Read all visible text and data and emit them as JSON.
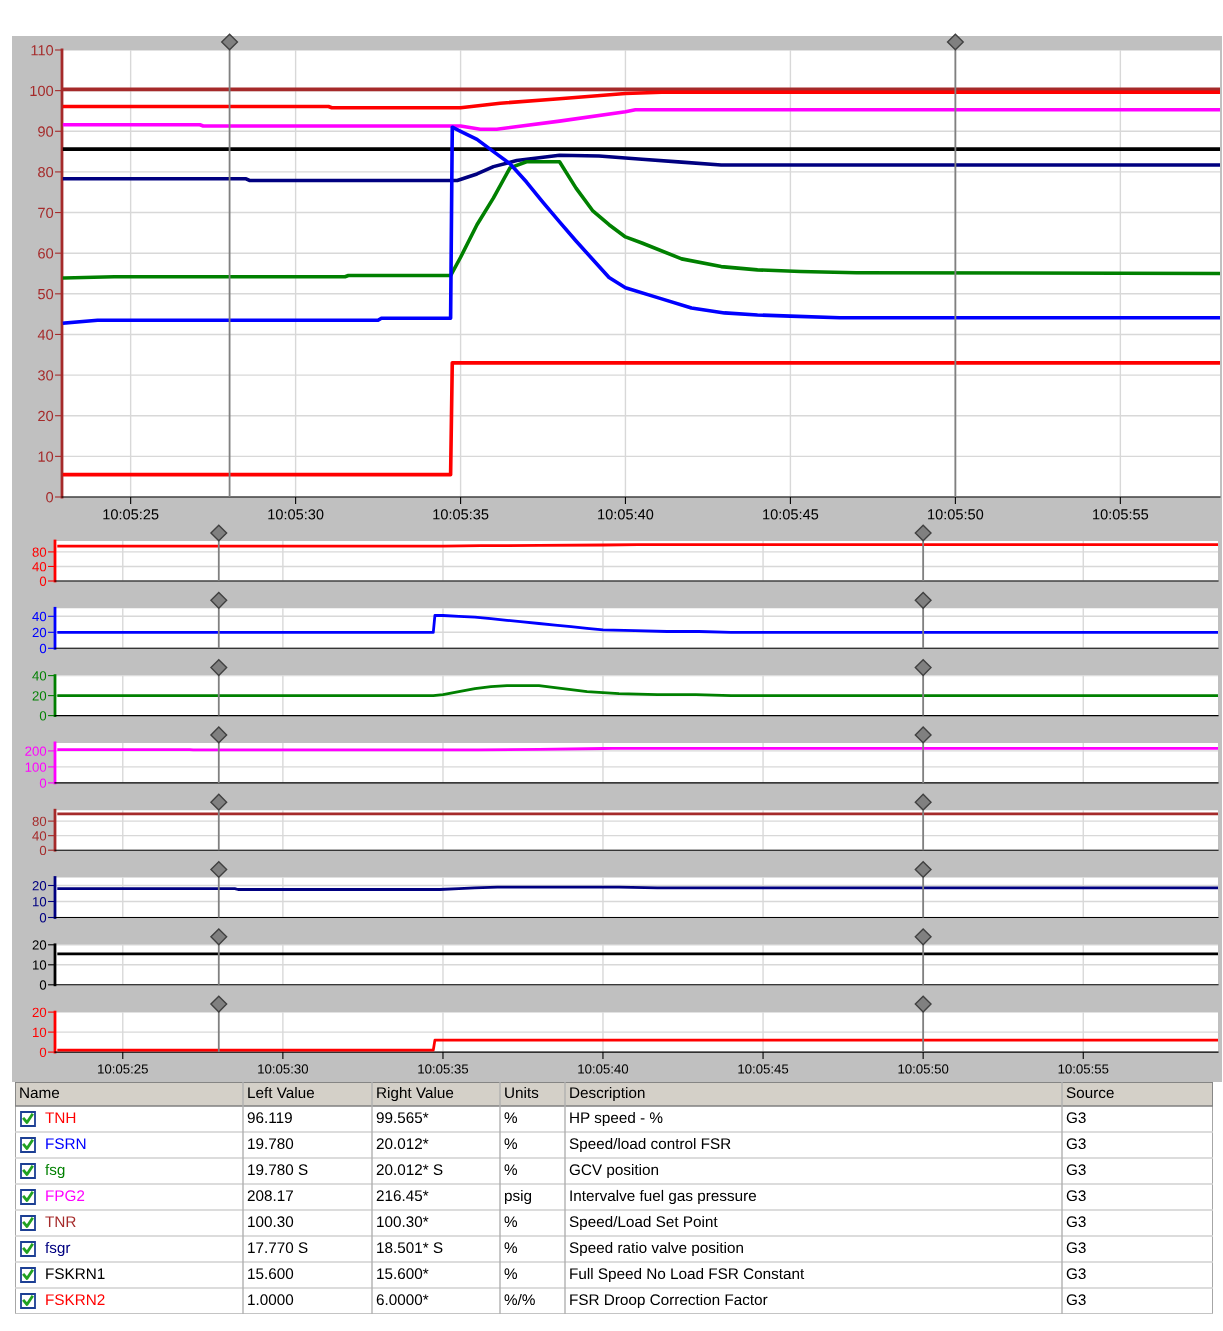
{
  "chart_data": [
    {
      "type": "line",
      "xlim": [
        10.0897,
        10.09945
      ],
      "ylim": [
        0,
        110
      ],
      "xticks": [
        {
          "value": 10.090278,
          "label": "10:05:25"
        },
        {
          "value": 10.091667,
          "label": "10:05:30"
        },
        {
          "value": 10.093056,
          "label": "10:05:35"
        },
        {
          "value": 10.094444,
          "label": "10:05:40"
        },
        {
          "value": 10.095833,
          "label": "10:05:45"
        },
        {
          "value": 10.097222,
          "label": "10:05:50"
        },
        {
          "value": 10.098611,
          "label": "10:05:55"
        }
      ],
      "yticks": [
        0,
        10,
        20,
        30,
        40,
        50,
        60,
        70,
        80,
        90,
        100,
        110
      ],
      "grid": true,
      "ref_lines": [
        {
          "axis": "x",
          "value": 10.091111,
          "color": "#808080"
        },
        {
          "axis": "x",
          "value": 10.097222,
          "color": "#808080"
        }
      ],
      "series": [
        {
          "color": "#a52a2a",
          "x": [
            10.089722,
            10.099444
          ],
          "values": [
            100.3,
            100.3
          ]
        },
        {
          "color": "#ff0000",
          "x": [
            10.089722,
            10.091944,
            10.091972,
            10.093056,
            10.093389,
            10.093889,
            10.094444,
            10.09475,
            10.099444
          ],
          "values": [
            96.1,
            96.1,
            95.8,
            95.8,
            96.9,
            98.0,
            99.3,
            99.6,
            99.6
          ]
        },
        {
          "color": "#ff00ff",
          "x": [
            10.089722,
            10.090861,
            10.090889,
            10.093056,
            10.093222,
            10.093361,
            10.093889,
            10.094444,
            10.094528,
            10.099444
          ],
          "values": [
            91.6,
            91.6,
            91.3,
            91.3,
            90.5,
            90.5,
            92.5,
            94.8,
            95.3,
            95.3
          ]
        },
        {
          "color": "#000000",
          "x": [
            10.089722,
            10.099444
          ],
          "values": [
            85.6,
            85.6
          ]
        },
        {
          "color": "#000080",
          "x": [
            10.089722,
            10.09125,
            10.091278,
            10.093028,
            10.093194,
            10.093333,
            10.093528,
            10.093889,
            10.094222,
            10.094583,
            10.094917,
            10.09525,
            10.099444
          ],
          "values": [
            78.3,
            78.3,
            77.9,
            77.9,
            79.5,
            81.3,
            82.8,
            84.1,
            83.9,
            83.1,
            82.4,
            81.7,
            81.7
          ]
        },
        {
          "color": "#008000",
          "x": [
            10.089722,
            10.090139,
            10.092083,
            10.092111,
            10.092972,
            10.093056,
            10.093194,
            10.093333,
            10.093472,
            10.093611,
            10.093889,
            10.094028,
            10.094167,
            10.094306,
            10.094444,
            10.094583,
            10.094917,
            10.09525,
            10.095556,
            10.095917,
            10.096389,
            10.099444
          ],
          "values": [
            53.9,
            54.2,
            54.2,
            54.5,
            54.5,
            59,
            67,
            73.6,
            81,
            82.5,
            82.5,
            76,
            70.5,
            67,
            64,
            62.5,
            58.6,
            56.7,
            55.9,
            55.5,
            55.2,
            55.0
          ]
        },
        {
          "color": "#0000ff",
          "x": [
            10.089722,
            10.09,
            10.092361,
            10.092389,
            10.092972,
            10.092986,
            10.093056,
            10.093194,
            10.093333,
            10.093472,
            10.093611,
            10.09375,
            10.093889,
            10.094028,
            10.094167,
            10.094306,
            10.094444,
            10.094722,
            10.095,
            10.095278,
            10.095556,
            10.095833,
            10.09625,
            10.099444
          ],
          "values": [
            42.8,
            43.5,
            43.5,
            44,
            44,
            91,
            90,
            88,
            85,
            82,
            77.5,
            72.5,
            67.7,
            63,
            58.5,
            54,
            51.5,
            49,
            46.5,
            45.3,
            44.8,
            44.5,
            44.1,
            44.1
          ]
        },
        {
          "color": "#ff0000",
          "x": [
            10.089722,
            10.092972,
            10.092986,
            10.099444
          ],
          "values": [
            5.5,
            5.5,
            33,
            33
          ]
        }
      ]
    },
    {
      "type": "line",
      "xlim": [
        10.08969,
        10.09978
      ],
      "ylim": [
        0,
        110
      ],
      "yticks": [
        0,
        40,
        80
      ],
      "grid": true,
      "tick_labels": "y",
      "xticks": [
        {
          "value": 10.090278,
          "label": null
        },
        {
          "value": 10.091667,
          "label": null
        },
        {
          "value": 10.093056,
          "label": null
        },
        {
          "value": 10.094444,
          "label": null
        },
        {
          "value": 10.095833,
          "label": null
        },
        {
          "value": 10.097222,
          "label": null
        },
        {
          "value": 10.098611,
          "label": null
        }
      ],
      "ref_lines": [
        {
          "axis": "x",
          "value": 10.091111,
          "color": "#808080"
        },
        {
          "axis": "x",
          "value": 10.097222,
          "color": "#808080"
        }
      ],
      "series": [
        {
          "color": "#ff0000",
          "x": [
            10.089722,
            10.093056,
            10.093389,
            10.093889,
            10.094444,
            10.09475,
            10.099778
          ],
          "values": [
            96,
            96,
            97,
            98,
            99,
            100,
            100
          ]
        }
      ]
    },
    {
      "type": "line",
      "xlim": [
        10.08969,
        10.09978
      ],
      "ylim": [
        0,
        50
      ],
      "yticks": [
        0,
        20,
        40
      ],
      "grid": true,
      "tick_labels": "y",
      "xticks": [
        {
          "value": 10.090278,
          "label": null
        },
        {
          "value": 10.091667,
          "label": null
        },
        {
          "value": 10.093056,
          "label": null
        },
        {
          "value": 10.094444,
          "label": null
        },
        {
          "value": 10.095833,
          "label": null
        },
        {
          "value": 10.097222,
          "label": null
        },
        {
          "value": 10.098611,
          "label": null
        }
      ],
      "ref_lines": [
        {
          "axis": "x",
          "value": 10.091111,
          "color": "#808080"
        },
        {
          "axis": "x",
          "value": 10.097222,
          "color": "#808080"
        }
      ],
      "series": [
        {
          "color": "#0000ff",
          "x": [
            10.089722,
            10.09,
            10.092361,
            10.092389,
            10.092972,
            10.092986,
            10.093056,
            10.093194,
            10.093333,
            10.093472,
            10.093611,
            10.09375,
            10.093889,
            10.094028,
            10.094167,
            10.094306,
            10.094444,
            10.094722,
            10.095,
            10.095278,
            10.095556,
            10.095833,
            10.09625,
            10.099778
          ],
          "values": [
            20,
            20,
            20,
            20,
            20,
            41,
            41,
            40,
            39,
            37,
            35,
            33,
            31,
            29,
            27,
            25,
            23,
            22,
            21,
            21,
            20,
            20,
            20,
            20
          ]
        }
      ]
    },
    {
      "type": "line",
      "xlim": [
        10.08969,
        10.09978
      ],
      "ylim": [
        0,
        40
      ],
      "yticks": [
        0,
        20,
        40
      ],
      "grid": true,
      "tick_labels": "y",
      "xticks": [
        {
          "value": 10.090278,
          "label": null
        },
        {
          "value": 10.091667,
          "label": null
        },
        {
          "value": 10.093056,
          "label": null
        },
        {
          "value": 10.094444,
          "label": null
        },
        {
          "value": 10.095833,
          "label": null
        },
        {
          "value": 10.097222,
          "label": null
        },
        {
          "value": 10.098611,
          "label": null
        }
      ],
      "ref_lines": [
        {
          "axis": "x",
          "value": 10.091111,
          "color": "#808080"
        },
        {
          "axis": "x",
          "value": 10.097222,
          "color": "#808080"
        }
      ],
      "series": [
        {
          "color": "#008000",
          "x": [
            10.089722,
            10.090139,
            10.092083,
            10.092111,
            10.092972,
            10.093056,
            10.093194,
            10.093333,
            10.093472,
            10.093611,
            10.093889,
            10.094028,
            10.094167,
            10.094306,
            10.094444,
            10.094583,
            10.094917,
            10.09525,
            10.095556,
            10.095917,
            10.096389,
            10.099778
          ],
          "values": [
            20,
            20,
            20,
            20,
            20,
            21,
            24,
            27,
            29,
            30,
            30,
            28,
            26,
            24,
            23,
            22,
            21,
            21,
            20,
            20,
            20,
            20
          ]
        }
      ]
    },
    {
      "type": "line",
      "xlim": [
        10.08969,
        10.09978
      ],
      "ylim": [
        0,
        250
      ],
      "yticks": [
        0,
        100,
        200
      ],
      "grid": true,
      "tick_labels": "y",
      "xticks": [
        {
          "value": 10.090278,
          "label": null
        },
        {
          "value": 10.091667,
          "label": null
        },
        {
          "value": 10.093056,
          "label": null
        },
        {
          "value": 10.094444,
          "label": null
        },
        {
          "value": 10.095833,
          "label": null
        },
        {
          "value": 10.097222,
          "label": null
        },
        {
          "value": 10.098611,
          "label": null
        }
      ],
      "ref_lines": [
        {
          "axis": "x",
          "value": 10.091111,
          "color": "#808080"
        },
        {
          "axis": "x",
          "value": 10.097222,
          "color": "#808080"
        }
      ],
      "series": [
        {
          "color": "#ff00ff",
          "x": [
            10.089722,
            10.090861,
            10.090889,
            10.093056,
            10.093222,
            10.093361,
            10.093889,
            10.094444,
            10.094528,
            10.099778
          ],
          "values": [
            208,
            208,
            207,
            207,
            206,
            206,
            210,
            215,
            216,
            216
          ]
        }
      ]
    },
    {
      "type": "line",
      "xlim": [
        10.08969,
        10.09978
      ],
      "ylim": [
        0,
        110
      ],
      "yticks": [
        0,
        40,
        80
      ],
      "grid": true,
      "tick_labels": "y",
      "xticks": [
        {
          "value": 10.090278,
          "label": null
        },
        {
          "value": 10.091667,
          "label": null
        },
        {
          "value": 10.093056,
          "label": null
        },
        {
          "value": 10.094444,
          "label": null
        },
        {
          "value": 10.095833,
          "label": null
        },
        {
          "value": 10.097222,
          "label": null
        },
        {
          "value": 10.098611,
          "label": null
        }
      ],
      "ref_lines": [
        {
          "axis": "x",
          "value": 10.091111,
          "color": "#808080"
        },
        {
          "axis": "x",
          "value": 10.097222,
          "color": "#808080"
        }
      ],
      "series": [
        {
          "color": "#a52a2a",
          "x": [
            10.089722,
            10.099778
          ],
          "values": [
            100,
            100
          ]
        }
      ]
    },
    {
      "type": "line",
      "xlim": [
        10.08969,
        10.09978
      ],
      "ylim": [
        0,
        25
      ],
      "yticks": [
        0,
        10,
        20
      ],
      "grid": true,
      "tick_labels": "y",
      "xticks": [
        {
          "value": 10.090278,
          "label": null
        },
        {
          "value": 10.091667,
          "label": null
        },
        {
          "value": 10.093056,
          "label": null
        },
        {
          "value": 10.094444,
          "label": null
        },
        {
          "value": 10.095833,
          "label": null
        },
        {
          "value": 10.097222,
          "label": null
        },
        {
          "value": 10.098611,
          "label": null
        }
      ],
      "ref_lines": [
        {
          "axis": "x",
          "value": 10.091111,
          "color": "#808080"
        },
        {
          "axis": "x",
          "value": 10.097222,
          "color": "#808080"
        }
      ],
      "series": [
        {
          "color": "#000080",
          "x": [
            10.089722,
            10.09125,
            10.091278,
            10.093028,
            10.093194,
            10.093333,
            10.093528,
            10.093889,
            10.094222,
            10.094583,
            10.094917,
            10.09525,
            10.099778
          ],
          "values": [
            18,
            18,
            17.5,
            17.5,
            18,
            18.5,
            19,
            19,
            19,
            19,
            18.5,
            18.5,
            18.5
          ]
        }
      ]
    },
    {
      "type": "line",
      "xlim": [
        10.08969,
        10.09978
      ],
      "ylim": [
        0,
        20
      ],
      "yticks": [
        0,
        10,
        20
      ],
      "grid": true,
      "tick_labels": "y",
      "xticks": [
        {
          "value": 10.090278,
          "label": null
        },
        {
          "value": 10.091667,
          "label": null
        },
        {
          "value": 10.093056,
          "label": null
        },
        {
          "value": 10.094444,
          "label": null
        },
        {
          "value": 10.095833,
          "label": null
        },
        {
          "value": 10.097222,
          "label": null
        },
        {
          "value": 10.098611,
          "label": null
        }
      ],
      "ref_lines": [
        {
          "axis": "x",
          "value": 10.091111,
          "color": "#808080"
        },
        {
          "axis": "x",
          "value": 10.097222,
          "color": "#808080"
        }
      ],
      "series": [
        {
          "color": "#000000",
          "x": [
            10.089722,
            10.099778
          ],
          "values": [
            15.5,
            15.5
          ]
        }
      ]
    },
    {
      "type": "line",
      "xlim": [
        10.08969,
        10.09978
      ],
      "ylim": [
        0,
        20
      ],
      "yticks": [
        0,
        10,
        20
      ],
      "grid": true,
      "xticks": [
        {
          "value": 10.090278,
          "label": "10:05:25"
        },
        {
          "value": 10.091667,
          "label": "10:05:30"
        },
        {
          "value": 10.093056,
          "label": "10:05:35"
        },
        {
          "value": 10.094444,
          "label": "10:05:40"
        },
        {
          "value": 10.095833,
          "label": "10:05:45"
        },
        {
          "value": 10.097222,
          "label": "10:05:50"
        },
        {
          "value": 10.098611,
          "label": "10:05:55"
        }
      ],
      "ref_lines": [
        {
          "axis": "x",
          "value": 10.091111,
          "color": "#808080"
        },
        {
          "axis": "x",
          "value": 10.097222,
          "color": "#808080"
        }
      ],
      "series": [
        {
          "color": "#ff0000",
          "x": [
            10.089722,
            10.092972,
            10.092986,
            10.099778
          ],
          "values": [
            1.0,
            1.0,
            6.0,
            6.0
          ]
        }
      ]
    },
    {
      "type": "other",
      "annotations": [
        "Name",
        "Left Value",
        "Right Value",
        "Units",
        "Description",
        "Source",
        "TNH",
        "96.119",
        "99.565*",
        "%",
        "HP speed - %",
        "G3",
        "FSRN",
        "19.780",
        "20.012*",
        "%",
        "Speed/load control FSR",
        "G3",
        "fsg",
        "19.780 S",
        "20.012* S",
        "%",
        "GCV position",
        "G3",
        "FPG2",
        "208.17",
        "216.45*",
        "psig",
        "Intervalve fuel gas pressure",
        "G3",
        "TNR",
        "100.30",
        "100.30*",
        "%",
        "Speed/Load Set Point",
        "G3",
        "fsgr",
        "17.770 S",
        "18.501* S",
        "%",
        "Speed ratio valve position",
        "G3",
        "FSKRN1",
        "15.600",
        "15.600*",
        "%",
        "Full Speed No Load FSR Constant",
        "G3",
        "FSKRN2",
        "1.0000",
        "6.0000*",
        "%/%",
        "FSR Droop Correction Factor",
        "G3"
      ]
    }
  ]
}
